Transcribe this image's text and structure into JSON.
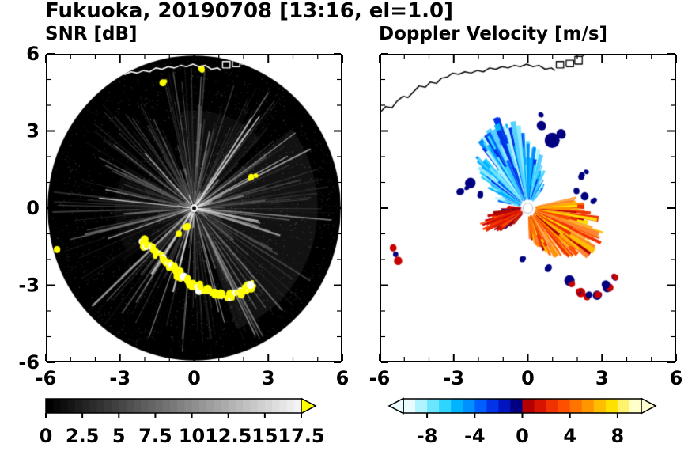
{
  "title": "Fukuoka, 20190708 [13:16, el=1.0]",
  "map_overlay": {
    "coast_main": [
      [
        -6.0,
        3.7
      ],
      [
        -5.75,
        3.95
      ],
      [
        -5.5,
        3.9
      ],
      [
        -5.3,
        4.15
      ],
      [
        -5.05,
        4.35
      ],
      [
        -4.85,
        4.3
      ],
      [
        -4.6,
        4.55
      ],
      [
        -4.4,
        4.75
      ],
      [
        -4.15,
        4.7
      ],
      [
        -3.95,
        4.9
      ],
      [
        -3.7,
        4.85
      ],
      [
        -3.5,
        5.05
      ],
      [
        -3.25,
        5.1
      ],
      [
        -3.05,
        5.25
      ],
      [
        -2.8,
        5.2
      ],
      [
        -2.55,
        5.3
      ],
      [
        -2.3,
        5.25
      ],
      [
        -2.05,
        5.35
      ],
      [
        -1.8,
        5.3
      ],
      [
        -1.55,
        5.45
      ],
      [
        -1.3,
        5.4
      ],
      [
        -1.05,
        5.5
      ],
      [
        -0.8,
        5.45
      ],
      [
        -0.55,
        5.55
      ],
      [
        -0.3,
        5.5
      ],
      [
        -0.05,
        5.6
      ],
      [
        0.2,
        5.5
      ],
      [
        0.45,
        5.55
      ],
      [
        0.7,
        5.4
      ],
      [
        0.95,
        5.45
      ],
      [
        1.1,
        5.35
      ]
    ],
    "ports": [
      [
        [
          1.15,
          5.45
        ],
        [
          1.15,
          5.7
        ],
        [
          1.45,
          5.7
        ],
        [
          1.45,
          5.45
        ],
        [
          1.15,
          5.45
        ]
      ],
      [
        [
          1.55,
          5.5
        ],
        [
          1.55,
          5.75
        ],
        [
          1.85,
          5.75
        ],
        [
          1.85,
          5.5
        ],
        [
          1.55,
          5.5
        ]
      ],
      [
        [
          1.9,
          5.6
        ],
        [
          1.9,
          5.9
        ],
        [
          2.2,
          5.9
        ],
        [
          2.2,
          5.6
        ],
        [
          1.9,
          5.6
        ]
      ],
      [
        [
          2.2,
          5.9
        ],
        [
          2.35,
          6.0
        ]
      ]
    ]
  },
  "chart_data": [
    {
      "type": "heatmap",
      "title": "SNR [dB]",
      "xlim": [
        -6,
        6
      ],
      "ylim": [
        -6,
        6
      ],
      "xticks": [
        -6,
        -3,
        0,
        3,
        6
      ],
      "xtick_labels": [
        "-6",
        "-3",
        "0",
        "3",
        "6"
      ],
      "yticks": [
        -6,
        -3,
        0,
        3,
        6
      ],
      "ytick_labels": [
        "-6",
        "-3",
        "0",
        "3",
        "6"
      ],
      "minor_tick_step": 1,
      "radar_disk": {
        "center": [
          0,
          0
        ],
        "radius": 5.93,
        "background": "#000000"
      },
      "glow_wedges": [
        {
          "a0": -70,
          "a1": 40,
          "r": 5.0,
          "alpha": 0.07
        },
        {
          "a0": 45,
          "a1": 100,
          "r": 3.8,
          "alpha": 0.05
        },
        {
          "a0": 150,
          "a1": 215,
          "r": 3.2,
          "alpha": 0.045
        }
      ],
      "streak_count": 420,
      "bright_streak_count": 18,
      "speckle_count": 2600,
      "clutter_color": "#ffff00",
      "clutter_arc": [
        [
          -2.1,
          -1.3
        ],
        [
          -1.7,
          -1.6
        ],
        [
          -1.35,
          -1.9
        ],
        [
          -1.05,
          -2.2
        ],
        [
          -0.7,
          -2.45
        ],
        [
          -0.35,
          -2.75
        ],
        [
          0.0,
          -2.95
        ],
        [
          0.45,
          -3.2
        ],
        [
          0.9,
          -3.35
        ],
        [
          1.4,
          -3.45
        ],
        [
          1.8,
          -3.3
        ],
        [
          2.15,
          -3.1
        ],
        [
          2.4,
          -2.9
        ]
      ],
      "clutter_spots": [
        [
          -0.6,
          -0.95
        ],
        [
          -0.35,
          -0.8
        ],
        [
          2.3,
          1.15
        ],
        [
          2.5,
          1.3
        ],
        [
          -5.55,
          -1.65
        ],
        [
          -1.25,
          4.85
        ],
        [
          0.3,
          5.4
        ]
      ],
      "coastline_color": "#ffffff",
      "colorbar": {
        "min": 0,
        "max": 17.5,
        "step": 0.5,
        "ticks": [
          0,
          2.5,
          5,
          7.5,
          10,
          12.5,
          15,
          17.5
        ],
        "tick_labels": [
          "0",
          "2.5",
          "5",
          "7.5",
          "10",
          "12.5",
          "15",
          "17.5"
        ],
        "gradient": [
          "#000000",
          "#fafafa"
        ],
        "over_color": "#ffff00"
      }
    },
    {
      "type": "heatmap",
      "title": "Doppler Velocity [m/s]",
      "xlim": [
        -6,
        6
      ],
      "ylim": [
        -6,
        6
      ],
      "xticks": [
        -6,
        -3,
        0,
        3,
        6
      ],
      "xtick_labels": [
        "-6",
        "-3",
        "0",
        "3",
        "6"
      ],
      "yticks": [
        -6,
        -3,
        0,
        3,
        6
      ],
      "ytick_labels": [],
      "minor_tick_step": 1,
      "coastline_color": "#000000",
      "fans": [
        {
          "name": "toward-radar-blue",
          "a0": 50,
          "a1": 168,
          "peak_angle": 112,
          "sigma": 42,
          "r_base": 0.7,
          "r_peak": 2.9,
          "count": 190,
          "inner_r": 0.3,
          "palette": [
            "#b0f4ff",
            "#6ae6ff",
            "#2fd4ff",
            "#00b4ff",
            "#0090ff",
            "#55d0ff",
            "#8ceaff",
            "#0060ff"
          ],
          "dark_color": "#0030e8",
          "dark_prob": 0.07
        },
        {
          "name": "away-from-radar-orange",
          "a0": -88,
          "a1": 12,
          "peak_angle": -25,
          "sigma": 50,
          "r_base": 0.6,
          "r_peak": 2.5,
          "count": 190,
          "inner_r": 0.3,
          "palette": [
            "#ff7300",
            "#ff9600",
            "#ff5000",
            "#ffbe00",
            "#ff8430",
            "#f03200",
            "#ffa64b",
            "#ffe100"
          ],
          "dark_color": "#b40000",
          "dark_prob": 0.08
        },
        {
          "name": "west-red-patch",
          "a0": 175,
          "a1": 228,
          "peak_angle": 202,
          "sigma": 22,
          "r_base": 0.5,
          "r_peak": 1.5,
          "count": 85,
          "inner_r": 0.25,
          "palette": [
            "#c80000",
            "#a00000",
            "#e62800",
            "#ff4600",
            "#d81400"
          ],
          "dark_color": "#000080",
          "dark_prob": 0.12
        }
      ],
      "navy_color": "#000080",
      "navy_patches": [
        [
          1.0,
          2.65,
          0.26
        ],
        [
          1.35,
          2.9,
          0.2
        ],
        [
          0.55,
          3.2,
          0.16
        ],
        [
          0.5,
          3.6,
          0.12
        ],
        [
          -2.35,
          0.95,
          0.18
        ],
        [
          -2.7,
          0.65,
          0.14
        ],
        [
          -1.9,
          0.55,
          0.1
        ],
        [
          -2.5,
          0.78,
          0.1
        ],
        [
          2.3,
          0.45,
          0.15
        ],
        [
          2.65,
          0.3,
          0.12
        ],
        [
          1.95,
          0.62,
          0.11
        ],
        [
          2.15,
          1.25,
          0.11
        ],
        [
          2.4,
          1.4,
          0.09
        ],
        [
          0.85,
          -2.3,
          0.13
        ],
        [
          -0.2,
          -2.0,
          0.1
        ]
      ],
      "clutter_arc": [
        [
          1.75,
          -2.85
        ],
        [
          2.05,
          -3.2
        ],
        [
          2.45,
          -3.45
        ],
        [
          2.9,
          -3.35
        ],
        [
          3.25,
          -3.0
        ],
        [
          3.5,
          -2.7
        ]
      ],
      "clutter_west": [
        [
          -5.45,
          -1.55
        ],
        [
          -5.35,
          -1.8
        ],
        [
          -5.25,
          -2.05
        ]
      ],
      "clutter_colors": [
        "#000080",
        "#c80000"
      ],
      "center_dot": {
        "radius": 0.2,
        "color": "#ffffff"
      },
      "colorbar": {
        "min": -10,
        "max": 10,
        "step": 1,
        "ticks": [
          -8,
          -4,
          0,
          4,
          8
        ],
        "tick_labels": [
          "-8",
          "-4",
          "0",
          "4",
          "8"
        ],
        "segment_colors": [
          "#eafcff",
          "#b0f4ff",
          "#6ae6ff",
          "#2fd4ff",
          "#00b4ff",
          "#0090ff",
          "#0060ff",
          "#0034e8",
          "#0014c0",
          "#000080",
          "#b40000",
          "#d81400",
          "#f03200",
          "#ff5000",
          "#ff7300",
          "#ff9600",
          "#ffbe00",
          "#ffe100",
          "#fff36e",
          "#ffffc8"
        ],
        "under_color": "#eafcff",
        "over_color": "#ffffd0"
      }
    }
  ]
}
